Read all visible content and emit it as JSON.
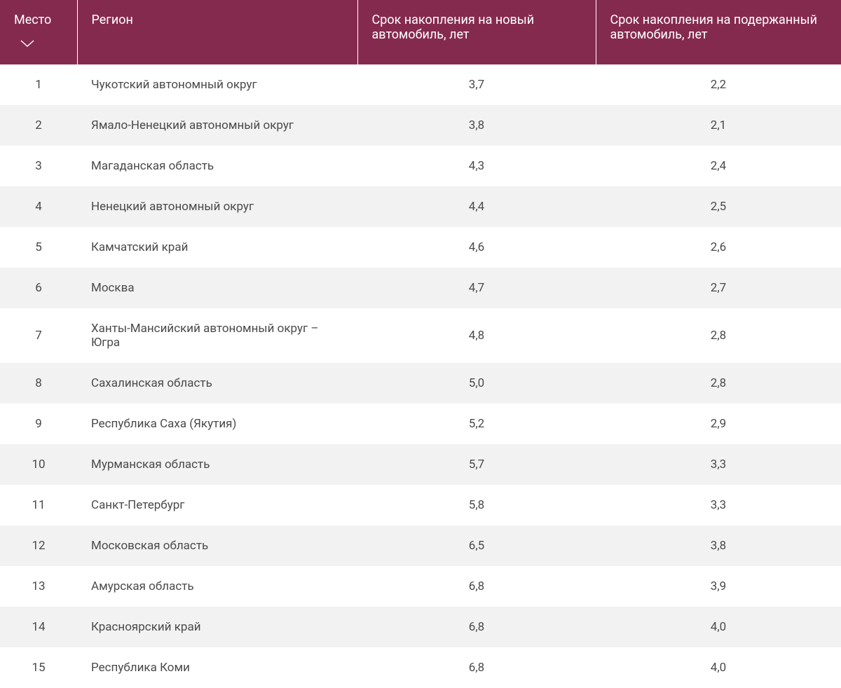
{
  "table": {
    "header_bg_color": "#852a4f",
    "header_text_color": "#ffffff",
    "row_even_bg": "#f2f2f2",
    "row_odd_bg": "#ffffff",
    "text_color": "#4a4a4a",
    "columns": [
      {
        "key": "rank",
        "label": "Место",
        "sortable": true
      },
      {
        "key": "region",
        "label": "Регион",
        "sortable": false
      },
      {
        "key": "new",
        "label": "Срок накопления на новый автомобиль, лет",
        "sortable": false
      },
      {
        "key": "used",
        "label": "Срок накопления на подержанный автомобиль, лет",
        "sortable": false
      }
    ],
    "rows": [
      {
        "rank": "1",
        "region": "Чукотский автономный округ",
        "new": "3,7",
        "used": "2,2"
      },
      {
        "rank": "2",
        "region": "Ямало-Ненецкий автономный округ",
        "new": "3,8",
        "used": "2,1"
      },
      {
        "rank": "3",
        "region": "Магаданская область",
        "new": "4,3",
        "used": "2,4"
      },
      {
        "rank": "4",
        "region": "Ненецкий автономный округ",
        "new": "4,4",
        "used": "2,5"
      },
      {
        "rank": "5",
        "region": "Камчатский край",
        "new": "4,6",
        "used": "2,6"
      },
      {
        "rank": "6",
        "region": "Москва",
        "new": "4,7",
        "used": "2,7"
      },
      {
        "rank": "7",
        "region": "Ханты-Мансийский автономный округ – Югра",
        "new": "4,8",
        "used": "2,8"
      },
      {
        "rank": "8",
        "region": "Сахалинская область",
        "new": "5,0",
        "used": "2,8"
      },
      {
        "rank": "9",
        "region": "Республика Саха (Якутия)",
        "new": "5,2",
        "used": "2,9"
      },
      {
        "rank": "10",
        "region": "Мурманская область",
        "new": "5,7",
        "used": "3,3"
      },
      {
        "rank": "11",
        "region": "Санкт-Петербург",
        "new": "5,8",
        "used": "3,3"
      },
      {
        "rank": "12",
        "region": "Московская область",
        "new": "6,5",
        "used": "3,8"
      },
      {
        "rank": "13",
        "region": "Амурская область",
        "new": "6,8",
        "used": "3,9"
      },
      {
        "rank": "14",
        "region": "Красноярский край",
        "new": "6,8",
        "used": "4,0"
      },
      {
        "rank": "15",
        "region": "Республика Коми",
        "new": "6,8",
        "used": "4,0"
      }
    ]
  }
}
